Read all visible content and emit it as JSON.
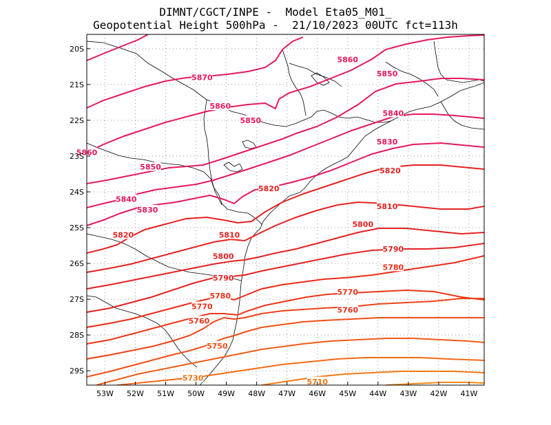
{
  "header": {
    "line1": "DIMNT/CGCT/INPE -  Model Eta05_M01_",
    "line2": "Geopotential Height 500hPa -  21/10/2023 00UTC fct=113h"
  },
  "map": {
    "lon_range": [
      -53.6,
      -40.5
    ],
    "lat_range": [
      -29.4,
      -19.6
    ],
    "lon_ticks": [
      "53W",
      "52W",
      "51W",
      "50W",
      "49W",
      "48W",
      "47W",
      "46W",
      "45W",
      "44W",
      "43W",
      "42W",
      "41W"
    ],
    "lat_ticks": [
      "20S",
      "21S",
      "22S",
      "23S",
      "24S",
      "25S",
      "26S",
      "27S",
      "28S",
      "29S"
    ],
    "grid": true,
    "coastline_color": "#000000"
  },
  "chart_data": {
    "type": "contour",
    "variable": "Geopotential Height 500hPa",
    "contour_levels": [
      5710,
      5720,
      5730,
      5740,
      5750,
      5760,
      5770,
      5780,
      5790,
      5800,
      5810,
      5820,
      5830,
      5840,
      5850,
      5860,
      5870
    ],
    "labels": [
      {
        "text": "5870",
        "lon": -49.8,
        "lat": -20.8
      },
      {
        "text": "5860",
        "lon": -45.0,
        "lat": -20.3
      },
      {
        "text": "5850",
        "lon": -43.7,
        "lat": -20.7
      },
      {
        "text": "5860",
        "lon": -49.2,
        "lat": -21.6
      },
      {
        "text": "5840",
        "lon": -43.5,
        "lat": -21.8
      },
      {
        "text": "5850",
        "lon": -48.2,
        "lat": -22.0
      },
      {
        "text": "5830",
        "lon": -43.7,
        "lat": -22.6
      },
      {
        "text": "5860",
        "lon": -53.6,
        "lat": -22.9
      },
      {
        "text": "5850",
        "lon": -51.5,
        "lat": -23.3
      },
      {
        "text": "5820",
        "lon": -43.6,
        "lat": -23.4
      },
      {
        "text": "5840",
        "lon": -52.3,
        "lat": -24.2
      },
      {
        "text": "5820",
        "lon": -47.6,
        "lat": -23.9
      },
      {
        "text": "5810",
        "lon": -43.7,
        "lat": -24.4
      },
      {
        "text": "5830",
        "lon": -51.6,
        "lat": -24.5
      },
      {
        "text": "5800",
        "lon": -44.5,
        "lat": -24.9
      },
      {
        "text": "5820",
        "lon": -52.4,
        "lat": -25.2
      },
      {
        "text": "5810",
        "lon": -48.9,
        "lat": -25.2
      },
      {
        "text": "5790",
        "lon": -43.5,
        "lat": -25.6
      },
      {
        "text": "5800",
        "lon": -49.1,
        "lat": -25.8
      },
      {
        "text": "5780",
        "lon": -43.5,
        "lat": -26.1
      },
      {
        "text": "5790",
        "lon": -49.1,
        "lat": -26.4
      },
      {
        "text": "5770",
        "lon": -45.0,
        "lat": -26.8
      },
      {
        "text": "5780",
        "lon": -49.2,
        "lat": -26.9
      },
      {
        "text": "5770",
        "lon": -49.8,
        "lat": -27.2
      },
      {
        "text": "5760",
        "lon": -45.0,
        "lat": -27.3
      },
      {
        "text": "5760",
        "lon": -49.9,
        "lat": -27.6
      },
      {
        "text": "5750",
        "lon": -49.3,
        "lat": -28.3
      },
      {
        "text": "5730",
        "lon": -50.1,
        "lat": -29.2
      },
      {
        "text": "5710",
        "lon": -46.0,
        "lat": -29.3
      }
    ]
  }
}
